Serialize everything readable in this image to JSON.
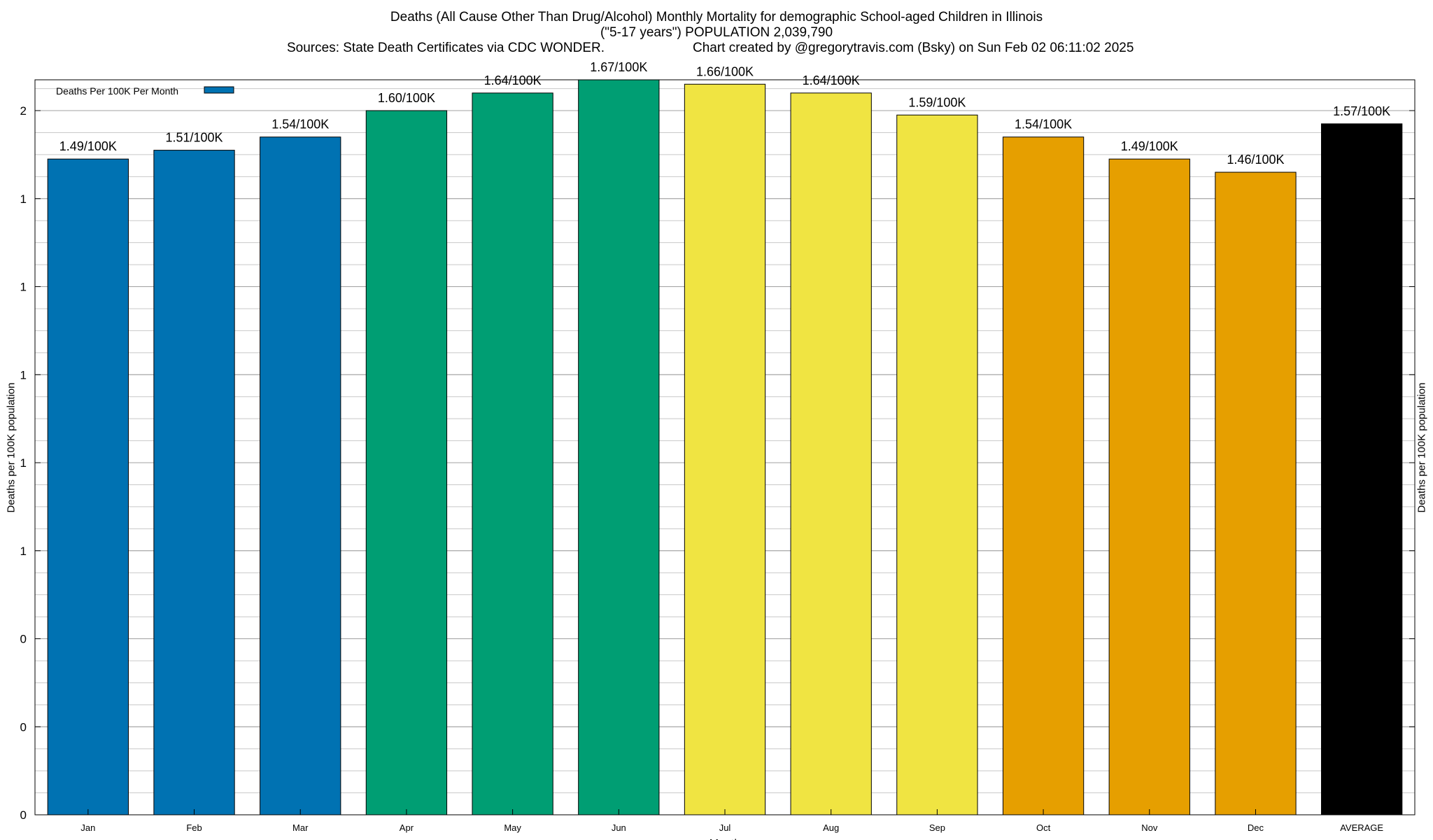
{
  "title": {
    "line1": "Deaths (All Cause Other Than Drug/Alcohol) Monthly Mortality for demographic School-aged Children in Illinois",
    "line2": "(\"5-17 years\") POPULATION 2,039,790",
    "sources": "Sources: State Death Certificates via CDC WONDER.",
    "credit": "Chart created by @gregorytravis.com (Bsky) on Sun Feb 02 06:11:02 2025"
  },
  "chart_data": {
    "type": "bar",
    "categories": [
      "Jan",
      "Feb",
      "Mar",
      "Apr",
      "May",
      "Jun",
      "Jul",
      "Aug",
      "Sep",
      "Oct",
      "Nov",
      "Dec",
      "AVERAGE"
    ],
    "values": [
      1.49,
      1.51,
      1.54,
      1.6,
      1.64,
      1.67,
      1.66,
      1.64,
      1.59,
      1.54,
      1.49,
      1.46,
      1.57
    ],
    "data_labels": [
      "1.49/100K",
      "1.51/100K",
      "1.54/100K",
      "1.60/100K",
      "1.64/100K",
      "1.67/100K",
      "1.66/100K",
      "1.64/100K",
      "1.59/100K",
      "1.54/100K",
      "1.49/100K",
      "1.46/100K",
      "1.57/100K"
    ],
    "bar_colors": [
      "#0072b2",
      "#0072b2",
      "#0072b2",
      "#009e73",
      "#009e73",
      "#009e73",
      "#f0e442",
      "#f0e442",
      "#f0e442",
      "#e69f00",
      "#e69f00",
      "#e69f00",
      "#000000"
    ],
    "xlabel": "Month",
    "ylabel": "Deaths per 100K population",
    "y2label": "Deaths per 100K population",
    "ylim": [
      0,
      1.67
    ],
    "y_tick_values": [
      0,
      0.2,
      0.4,
      0.6,
      0.8,
      1.0,
      1.2,
      1.4,
      1.6
    ],
    "y_tick_labels": [
      "0",
      "0",
      "0",
      "1",
      "1",
      "1",
      "1",
      "1",
      "2"
    ],
    "legend": {
      "label": "Deaths Per 100K Per Month",
      "color": "#0072b2",
      "position": "top-left"
    },
    "grid": true
  }
}
